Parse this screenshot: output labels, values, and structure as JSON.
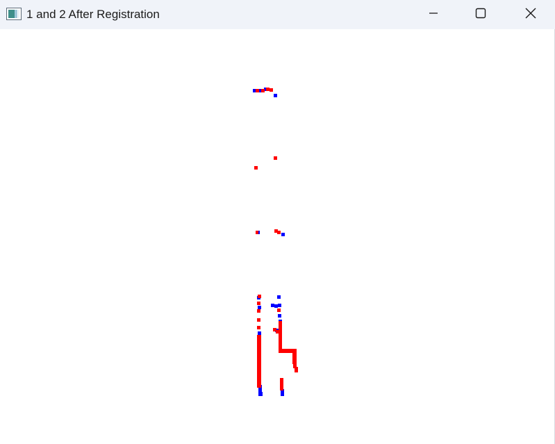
{
  "window": {
    "title": "1 and 2 After Registration"
  },
  "icons": {
    "app": "app-window-icon",
    "minimize": "minimize-icon",
    "maximize": "maximize-icon",
    "close": "close-icon"
  },
  "colors": {
    "titlebar_bg": "#f0f3f9",
    "canvas_bg": "#ffffff",
    "cloud_1": "#0000ff",
    "cloud_2": "#ff0000"
  }
}
